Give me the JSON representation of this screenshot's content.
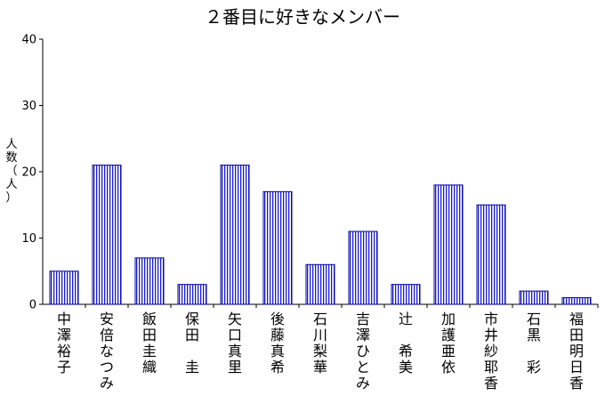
{
  "chart_data": {
    "type": "bar",
    "title": "２番目に好きなメンバー",
    "ylabel": "人数（人）",
    "xlabel": "",
    "ylim": [
      0,
      40
    ],
    "yticks": [
      0,
      10,
      20,
      30,
      40
    ],
    "grid": false,
    "categories": [
      "中澤裕子",
      "安倍なつみ",
      "飯田圭織",
      "保田　圭",
      "矢口真里",
      "後藤真希",
      "石川梨華",
      "吉澤ひとみ",
      "辻　希美",
      "加護亜依",
      "市井紗耶香",
      "石黒　彩",
      "福田明日香"
    ],
    "values": [
      5,
      21,
      7,
      3,
      21,
      17,
      6,
      11,
      3,
      18,
      15,
      2,
      1
    ],
    "colors": {
      "bar_stroke": "#0000a0",
      "bar_hatch": "#1a1acc",
      "bar_fill": "#ffffff",
      "axis": "#000000"
    }
  }
}
